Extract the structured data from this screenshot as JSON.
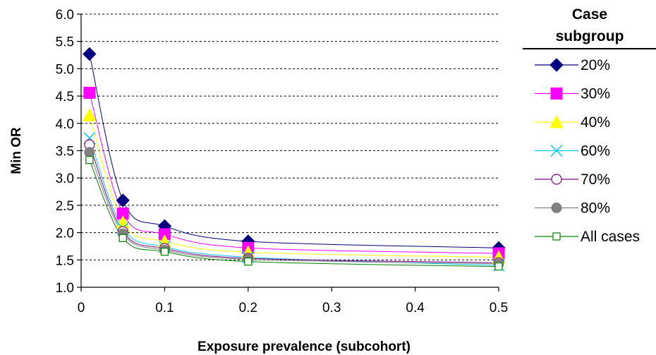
{
  "chart_data": {
    "type": "line",
    "xlabel": "Exposure prevalence (subcohort)",
    "ylabel": "Min OR",
    "xlim": [
      0,
      0.5
    ],
    "ylim": [
      1.0,
      6.0
    ],
    "x_ticks": [
      "0",
      "0.1",
      "0.2",
      "0.3",
      "0.4",
      "0.5"
    ],
    "y_ticks": [
      "1.0",
      "1.5",
      "2.0",
      "2.5",
      "3.0",
      "3.5",
      "4.0",
      "4.5",
      "5.0",
      "5.5",
      "6.0"
    ],
    "grid": "horizontal dashed",
    "legend_title_lines": [
      "Case",
      "subgroup"
    ],
    "legend_position": "right",
    "x": [
      0.01,
      0.05,
      0.1,
      0.2,
      0.5
    ],
    "series": [
      {
        "name": "20%",
        "values": [
          5.27,
          2.59,
          2.12,
          1.84,
          1.72
        ],
        "color": "#000080",
        "marker": "diamond"
      },
      {
        "name": "30%",
        "values": [
          4.56,
          2.35,
          1.97,
          1.72,
          1.62
        ],
        "color": "#ff00ff",
        "marker": "square"
      },
      {
        "name": "40%",
        "values": [
          4.15,
          2.19,
          1.84,
          1.64,
          1.55
        ],
        "color": "#ffff00",
        "marker": "triangle"
      },
      {
        "name": "60%",
        "values": [
          3.73,
          2.08,
          1.74,
          1.55,
          1.4
        ],
        "color": "#00ccff",
        "marker": "x"
      },
      {
        "name": "70%",
        "values": [
          3.61,
          2.02,
          1.71,
          1.53,
          1.45
        ],
        "color": "#800080",
        "marker": "circle-open"
      },
      {
        "name": "80%",
        "values": [
          3.47,
          1.98,
          1.68,
          1.51,
          1.43
        ],
        "color": "#808080",
        "marker": "circle-filled"
      },
      {
        "name": "All cases",
        "values": [
          3.33,
          1.9,
          1.65,
          1.47,
          1.38
        ],
        "color": "#008000",
        "marker": "square-open"
      }
    ]
  }
}
